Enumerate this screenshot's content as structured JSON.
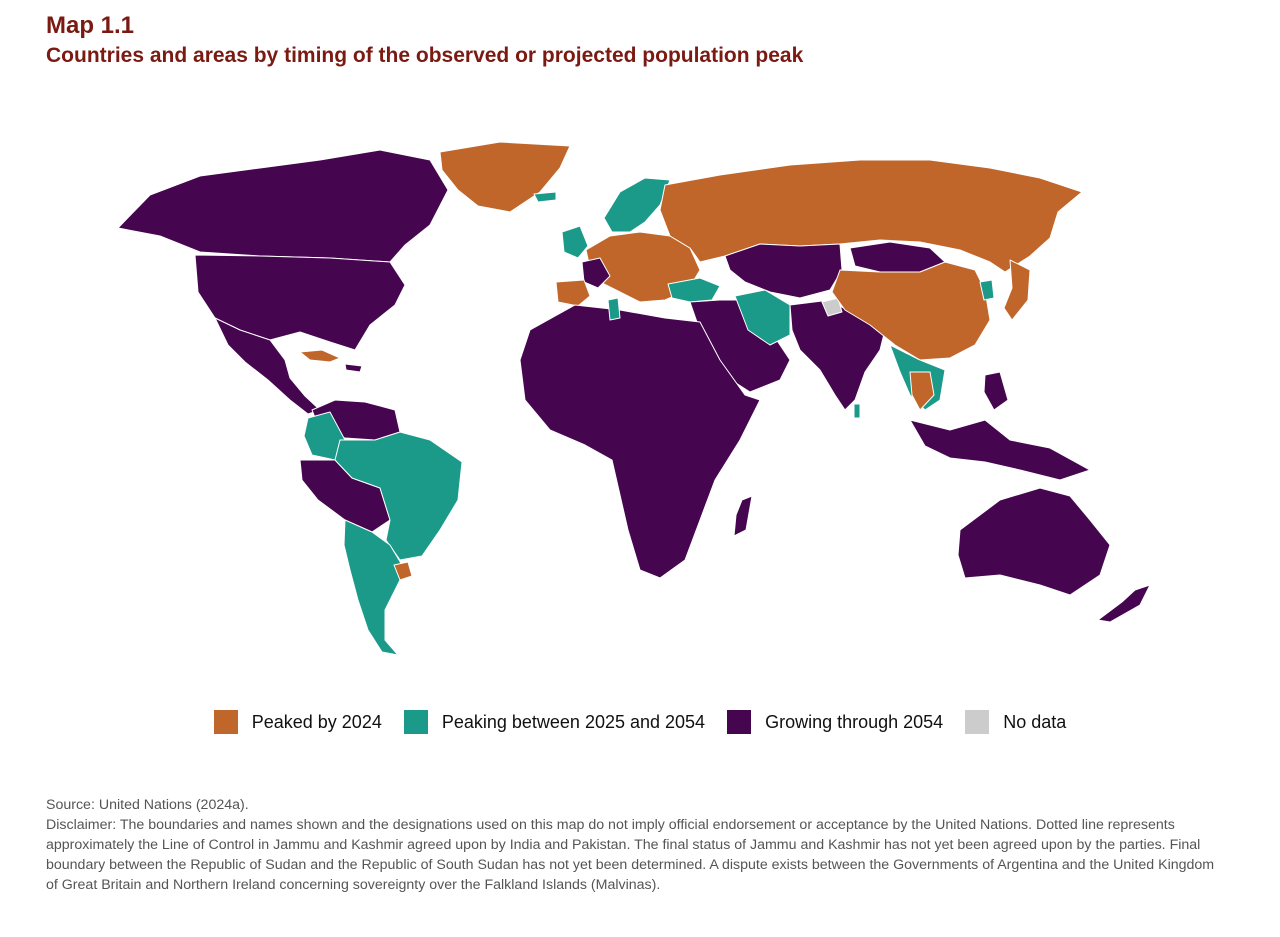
{
  "header": {
    "map_label": "Map 1.1",
    "title": "Countries and areas by timing of the observed or projected population peak"
  },
  "legend": {
    "items": [
      {
        "label": "Peaked by 2024",
        "color": "#c0662a"
      },
      {
        "label": "Peaking between 2025 and 2054",
        "color": "#1b9a8a"
      },
      {
        "label": "Growing through 2054",
        "color": "#45054f"
      },
      {
        "label": "No data",
        "color": "#cccccc"
      }
    ]
  },
  "footnotes": {
    "source": "Source: United Nations (2024a).",
    "disclaimer": "Disclaimer: The boundaries and names shown and the designations used on this map do not imply official endorsement or acceptance by the United Nations. Dotted line represents approximately the Line of Control in Jammu and Kashmir agreed upon by India and Pakistan. The final status of Jammu and Kashmir has not yet been agreed upon by the parties. Final boundary between the Republic of Sudan and the Republic of South Sudan has not yet been determined. A dispute exists between the Governments of Argentina and the United Kingdom of Great Britain and Northern Ireland concerning sovereignty over the Falkland Islands (Malvinas)."
  }
}
